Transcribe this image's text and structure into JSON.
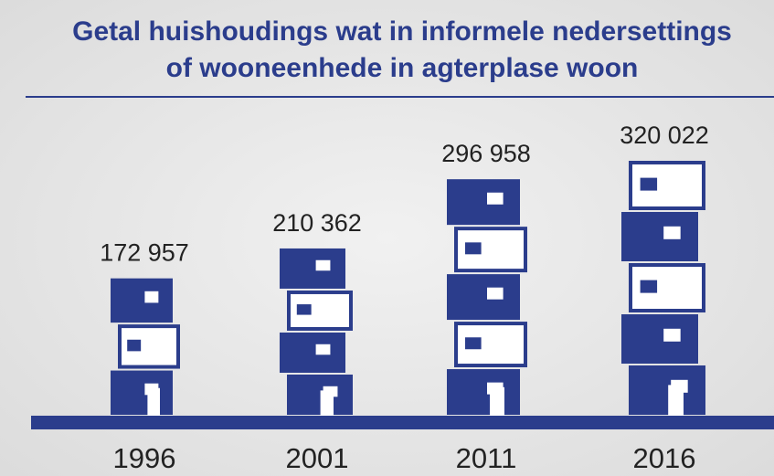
{
  "chart_data": {
    "type": "bar",
    "title": [
      "Getal huishoudings wat in informele nedersettings",
      "of wooneenhede in agterplase woon"
    ],
    "categories": [
      "1996",
      "2001",
      "2011",
      "2016"
    ],
    "values": [
      172957,
      210362,
      296958,
      320022
    ],
    "value_labels": [
      "172 957",
      "210 362",
      "296 958",
      "320 022"
    ],
    "color": "#2b3d8c"
  }
}
